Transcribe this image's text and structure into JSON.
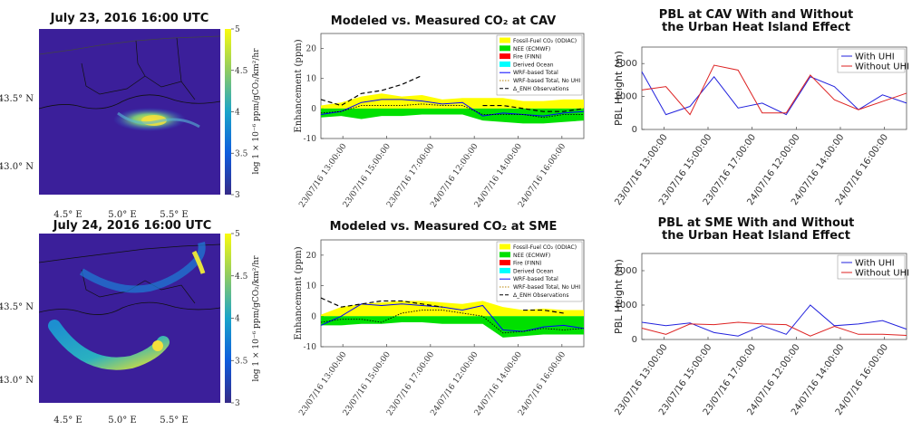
{
  "maps": [
    {
      "title": "July 23, 2016 16:00 UTC",
      "lat_ticks": [
        "43.5° N",
        "43.0° N"
      ],
      "lon_ticks": [
        "4.5° E",
        "5.0° E",
        "5.5° E"
      ],
      "colorbar": {
        "ticks": [
          "5",
          "4.5",
          "4",
          "3.5",
          "3"
        ],
        "range": [
          3,
          5
        ],
        "label": "log 1 × 10⁻⁶ ppm/gCO₂/km²/hr"
      }
    },
    {
      "title": "July 24, 2016 16:00 UTC",
      "lat_ticks": [
        "43.5° N",
        "43.0° N"
      ],
      "lon_ticks": [
        "4.5° E",
        "5.0° E",
        "5.5° E"
      ],
      "colorbar": {
        "ticks": [
          "5",
          "4.5",
          "4",
          "3.5",
          "3"
        ],
        "range": [
          3,
          5
        ],
        "label": "log 1 × 10⁻⁶ ppm/gCO₂/km²/hr"
      }
    }
  ],
  "colors": {
    "map_background": "#3b1f9a",
    "fossil": "#ffff00",
    "nee": "#00e000",
    "fire": "#ff0000",
    "ocean": "#00ffff",
    "total": "#0000ff",
    "total_no_uhi": "#000000",
    "observations": "#000000",
    "with_uhi": "#2222dd",
    "without_uhi": "#dd2222"
  },
  "legend_labels": {
    "fossil": "Fossil-Fuel CO₂ (ODIAC)",
    "nee": "NEE (ECMWF)",
    "fire": "Fire (FINN)",
    "ocean": "Derived Ocean",
    "total": "WRF-based Total",
    "total_no_uhi": "WRF-based Total, No UHI",
    "observations": "Δ_ENH Observations",
    "with_uhi": "With UHI",
    "without_uhi": "Without UHI"
  },
  "chart_data": [
    {
      "type": "area",
      "title": "Modeled vs. Measured CO₂ at CAV",
      "ylabel": "Enhancement (ppm)",
      "ylim": [
        -10,
        25
      ],
      "yticks": [
        -10,
        0,
        10,
        20
      ],
      "xtick_labels": [
        "23/07/16 13:00:00",
        "23/07/16 15:00:00",
        "23/07/16 17:00:00",
        "24/07/16 12:00:00",
        "24/07/16 14:00:00",
        "24/07/16 16:00:00"
      ],
      "x_count": 14,
      "fossil_top": [
        1,
        2,
        4,
        5,
        4,
        4.5,
        3,
        3.5,
        3.5,
        3.5,
        2.5,
        2.5,
        3,
        3
      ],
      "nee_bottom": [
        -3,
        -2.5,
        -3.5,
        -2.5,
        -2.5,
        -2,
        -2,
        -2,
        -4,
        -4.5,
        -5,
        -5,
        -4.5,
        -4
      ],
      "series": [
        {
          "name": "WRF-based Total",
          "values": [
            -2,
            -1,
            2,
            3,
            3,
            2.5,
            1.5,
            2,
            -2.5,
            -1.5,
            -2,
            -2.5,
            -1.5,
            -1
          ]
        },
        {
          "name": "WRF-based Total, No UHI",
          "values": [
            -1.5,
            -1,
            1,
            1,
            1,
            1.5,
            1,
            1,
            -2,
            -2,
            -2,
            -3,
            -2,
            -2
          ]
        },
        {
          "name": "Δ_ENH Observations",
          "segments": [
            {
              "x": [
                0,
                1,
                2,
                3,
                4,
                5
              ],
              "y": [
                3,
                1,
                5,
                6,
                8,
                11
              ]
            },
            {
              "x": [
                8,
                9,
                10,
                11,
                12,
                13
              ],
              "y": [
                1,
                1,
                0,
                -1,
                -1,
                0
              ]
            }
          ]
        }
      ]
    },
    {
      "type": "area",
      "title": "Modeled vs. Measured CO₂ at SME",
      "ylabel": "Enhancement (ppm)",
      "ylim": [
        -10,
        25
      ],
      "yticks": [
        -10,
        0,
        10,
        20
      ],
      "xtick_labels": [
        "23/07/16 13:00:00",
        "23/07/16 15:00:00",
        "23/07/16 17:00:00",
        "24/07/16 12:00:00",
        "24/07/16 14:00:00",
        "24/07/16 16:00:00"
      ],
      "x_count": 14,
      "fossil_top": [
        0.5,
        3,
        4,
        4.5,
        5,
        5,
        4.5,
        4,
        5,
        3,
        2,
        2.5,
        2,
        2
      ],
      "nee_bottom": [
        -3,
        -3,
        -2.5,
        -2.5,
        -2,
        -2,
        -2.5,
        -2.5,
        -2.5,
        -7,
        -6.5,
        -6,
        -6,
        -6
      ],
      "series": [
        {
          "name": "WRF-based Total",
          "values": [
            -3,
            0,
            4,
            3.5,
            4,
            3.5,
            3,
            2,
            3.5,
            -4.5,
            -5,
            -3.5,
            -3,
            -4
          ]
        },
        {
          "name": "WRF-based Total, No UHI",
          "values": [
            -2,
            -1,
            -1,
            -2,
            1,
            2,
            2,
            1,
            0,
            -5.5,
            -5,
            -4,
            -4.5,
            -4
          ]
        },
        {
          "name": "Δ_ENH Observations",
          "segments": [
            {
              "x": [
                0,
                1,
                2,
                3,
                4,
                5,
                6
              ],
              "y": [
                6,
                3,
                4,
                5,
                5,
                4,
                3
              ]
            },
            {
              "x": [
                10,
                11,
                12
              ],
              "y": [
                2,
                2,
                1
              ]
            }
          ]
        }
      ]
    },
    {
      "type": "line",
      "title": "PBL at CAV With and Without the Urban Heat Island Effect",
      "title_lines": [
        "PBL at CAV With and Without",
        "the Urban Heat Island Effect"
      ],
      "ylabel": "PBL Height (m)",
      "ylim": [
        0,
        2500
      ],
      "yticks": [
        0,
        1000,
        2000
      ],
      "xtick_labels": [
        "23/07/16 13:00:00",
        "23/07/16 15:00:00",
        "23/07/16 17:00:00",
        "24/07/16 12:00:00",
        "24/07/16 14:00:00",
        "24/07/16 16:00:00"
      ],
      "x_count": 12,
      "series": [
        {
          "name": "With UHI",
          "values": [
            1750,
            450,
            700,
            1600,
            650,
            800,
            450,
            1600,
            1300,
            600,
            1050,
            800
          ]
        },
        {
          "name": "Without UHI",
          "values": [
            1200,
            1300,
            450,
            1950,
            1800,
            500,
            500,
            1650,
            900,
            600,
            850,
            1100
          ]
        }
      ]
    },
    {
      "type": "line",
      "title": "PBL at SME With and Without the Urban Heat Island Effect",
      "title_lines": [
        "PBL at SME With and Without",
        "the Urban Heat Island Effect"
      ],
      "ylabel": "PBL Height (m)",
      "ylim": [
        0,
        2500
      ],
      "yticks": [
        0,
        1000,
        2000
      ],
      "xtick_labels": [
        "23/07/16 13:00:00",
        "23/07/16 15:00:00",
        "23/07/16 17:00:00",
        "24/07/16 12:00:00",
        "24/07/16 14:00:00",
        "24/07/16 16:00:00"
      ],
      "x_count": 12,
      "series": [
        {
          "name": "With UHI",
          "values": [
            500,
            400,
            480,
            200,
            100,
            400,
            150,
            1000,
            400,
            450,
            550,
            300
          ]
        },
        {
          "name": "Without UHI",
          "values": [
            330,
            150,
            450,
            430,
            500,
            450,
            430,
            100,
            380,
            150,
            150,
            120
          ]
        }
      ]
    }
  ]
}
